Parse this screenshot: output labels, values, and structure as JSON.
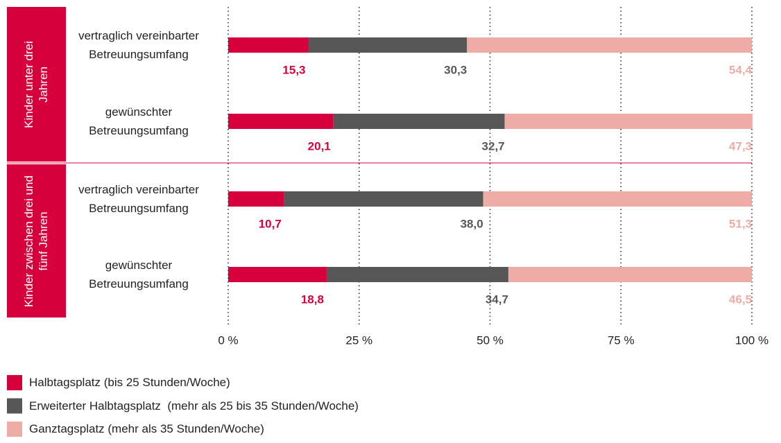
{
  "chart_data": {
    "type": "stacked-bar-horizontal",
    "groups": [
      "Kinder unter drei Jahren",
      "Kinder zwischen drei und fünf Jahren"
    ],
    "categories": [
      "vertraglich vereinbarter Betreuungsumfang",
      "gewünschter Betreuungsumfang",
      "vertraglich vereinbarter Betreuungsumfang",
      "gewünschter Betreuungsumfang"
    ],
    "series": [
      {
        "name": "Halbtagsplatz (bis 25 Stunden/Woche)",
        "color": "#d5003c",
        "values": [
          15.3,
          20.1,
          10.7,
          18.8
        ],
        "value_labels": [
          "15,3",
          "20,1",
          "10,7",
          "18,8"
        ]
      },
      {
        "name": "Erweiterter Halbtagsplatz  (mehr als 25 bis 35 Stunden/Woche)",
        "color": "#575757",
        "values": [
          30.3,
          32.7,
          38.0,
          34.7
        ],
        "value_labels": [
          "30,3",
          "32,7",
          "38,0",
          "34,7"
        ]
      },
      {
        "name": "Ganztagsplatz (mehr als 35 Stunden/Woche)",
        "color": "#efaca7",
        "values": [
          54.4,
          47.3,
          51.3,
          46.5
        ],
        "value_labels": [
          "54,4",
          "47,3",
          "51,3",
          "46,5"
        ]
      }
    ],
    "xlim": [
      0,
      100
    ],
    "xticks": [
      {
        "value": 0,
        "label": "0 %"
      },
      {
        "value": 25,
        "label": "25 %"
      },
      {
        "value": 50,
        "label": "50 %"
      },
      {
        "value": 75,
        "label": "75 %"
      },
      {
        "value": 100,
        "label": "100 %"
      }
    ],
    "grid": true
  }
}
